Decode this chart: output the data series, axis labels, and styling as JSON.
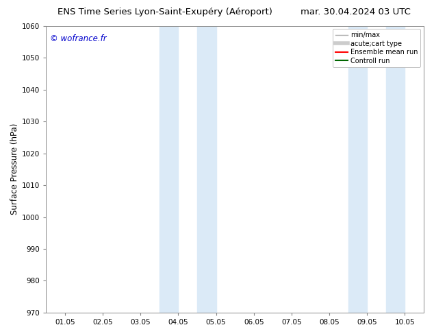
{
  "title_left": "ENS Time Series Lyon-Saint-Exupéry (Aéroport)",
  "title_right": "mar. 30.04.2024 03 UTC",
  "ylabel": "Surface Pressure (hPa)",
  "ylim": [
    970,
    1060
  ],
  "yticks": [
    970,
    980,
    990,
    1000,
    1010,
    1020,
    1030,
    1040,
    1050,
    1060
  ],
  "xtick_labels": [
    "01.05",
    "02.05",
    "03.05",
    "04.05",
    "05.05",
    "06.05",
    "07.05",
    "08.05",
    "09.05",
    "10.05"
  ],
  "shaded_regions": [
    {
      "xstart": 3.0,
      "xend": 3.5,
      "color": "#dbeaf7"
    },
    {
      "xstart": 4.0,
      "xend": 4.5,
      "color": "#dbeaf7"
    },
    {
      "xstart": 8.0,
      "xend": 8.5,
      "color": "#dbeaf7"
    },
    {
      "xstart": 9.0,
      "xend": 9.5,
      "color": "#dbeaf7"
    }
  ],
  "watermark": "© wofrance.fr",
  "watermark_color": "#0000cc",
  "legend_entries": [
    {
      "label": "min/max",
      "color": "#aaaaaa",
      "linewidth": 1.0
    },
    {
      "label": "acute;cart type",
      "color": "#cccccc",
      "linewidth": 4.0
    },
    {
      "label": "Ensemble mean run",
      "color": "#ff0000",
      "linewidth": 1.5
    },
    {
      "label": "Controll run",
      "color": "#006600",
      "linewidth": 1.5
    }
  ],
  "bg_color": "#ffffff",
  "title_fontsize": 9.5,
  "ylabel_fontsize": 8.5,
  "tick_fontsize": 7.5,
  "legend_fontsize": 7.0,
  "watermark_fontsize": 8.5
}
